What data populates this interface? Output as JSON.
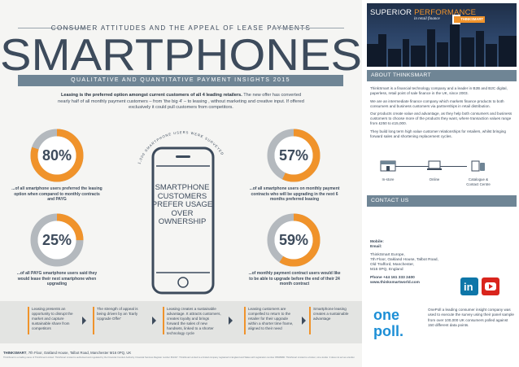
{
  "header": {
    "subtitle": "CONSUMER ATTITUDES AND THE APPEAL OF LEASE PAYMENTS",
    "title": "SMARTPHONES",
    "banner": "QUALITATIVE AND QUANTITATIVE PAYMENT INSIGHTS 2015",
    "intro_bold": "Leasing is the preferred option amongst current customers of all 4 leading retailers.",
    "intro_rest": " The new offer has converted nearly half of all monthly payment customers – from 'the big 4' – to leasing , without marketing and creative input. If offered exclusively it could pull customers from competitors."
  },
  "arc_label": "1,000 SMARTPHONE USERS WERE SURVEYED",
  "phone_text": "SMARTPHONE CUSTOMERS PREFER USAGE OVER OWNERSHIP",
  "stats": [
    {
      "value": 80,
      "label": "80%",
      "caption": "...of all smartphone users preferred the leasing option when compared to monthly contracts and PAYG"
    },
    {
      "value": 57,
      "label": "57%",
      "caption": "...of all smartphone users on monthly payment contracts who will be upgrading in the next 6 months preferred leasing"
    },
    {
      "value": 25,
      "label": "25%",
      "caption": "...of all PAYG smartphone users said they would lease their next smartphone when upgrading"
    },
    {
      "value": 59,
      "label": "59%",
      "caption": "...of monthly payment contract users would like to be able to upgrade before the end of their 24 month contract"
    }
  ],
  "steps": [
    "Leasing presents an opportunity to disrupt the market and capture sustainable share from competitors",
    "The strength of appeal is being driven by an 'Early Upgrade Offer'",
    "Leasing creates a sustainable advantage. It attracts customers, creates loyalty and brings forward the sales of new handsets, linked to a shorter technology cycle",
    "Leasing customers are compelled to return to the retailer for their upgrade within a shorter time frame, aligned to their need",
    "Smartphone leasing creates a sustainable advantage"
  ],
  "footer": {
    "company": "THINKSMART",
    "address": ", 7th Floor, Oakland House, Talbot Road, Manchester M16 0PQ, UK",
    "legal": "ThinkSmart is a trading name of ThinkSmart Limited. ThinkSmart Limited is authorised and regulated by the Financial Conduct Authority. Financial Services Register number 661327. ThinkSmart Limited is a limited company registered in England and Wales with registration number 05848986. ThinkSmart Limited is a broker, not a lender. It does not act as a lender."
  },
  "sidebar": {
    "hero_title_1": "SUPERIOR",
    "hero_title_2": "PERFORMANCE",
    "hero_tagline": "in retail finance",
    "logo_text": "THINKSMART",
    "about_heading": "ABOUT THINKSMART",
    "about_paragraphs": [
      "ThinkSmart is a financial technology company and a leader in B2B and B2C digital, paperless, retail point of sale finance in the UK, since 2003.",
      "We are an intermediate finance company which markets finance products to both consumers and business customers via partnerships in retail distribution.",
      "Our products create value and advantage, as they help both consumers and business customers to choose more of the products they want, where transaction values range from £250 to £15,000.",
      "They build long term high value customer relationships for retailers, whilst bringing forward sales and shortening replacement cycles."
    ],
    "channels": [
      "In-store",
      "Online",
      "Catalogue & Contact Centre"
    ],
    "contact_heading": "CONTACT US",
    "mobile_label": "Mobile:",
    "email_label": "Email:",
    "address_lines": [
      "ThinkSmart Europe,",
      "7th Floor, Oakland House, Talbot Road,",
      "Old Trafford, Manchester,",
      "M16 0PQ, England"
    ],
    "phone": "Phone +44 161 333 2400",
    "website": "www.thinksmartworld.com",
    "social": [
      "linkedin-icon",
      "youtube-icon"
    ],
    "onepoll_1": "one",
    "onepoll_2": "poll.",
    "onepoll_text": "OnePoll a leading consumer insight company was used to execute the survey using their panel sample from over 100,000 UK consumers polled against 150 different data points."
  },
  "colors": {
    "accent": "#f0932b",
    "navy": "#3d4b5c",
    "slate": "#6f8595",
    "grey_ring": "#b4b9be"
  }
}
